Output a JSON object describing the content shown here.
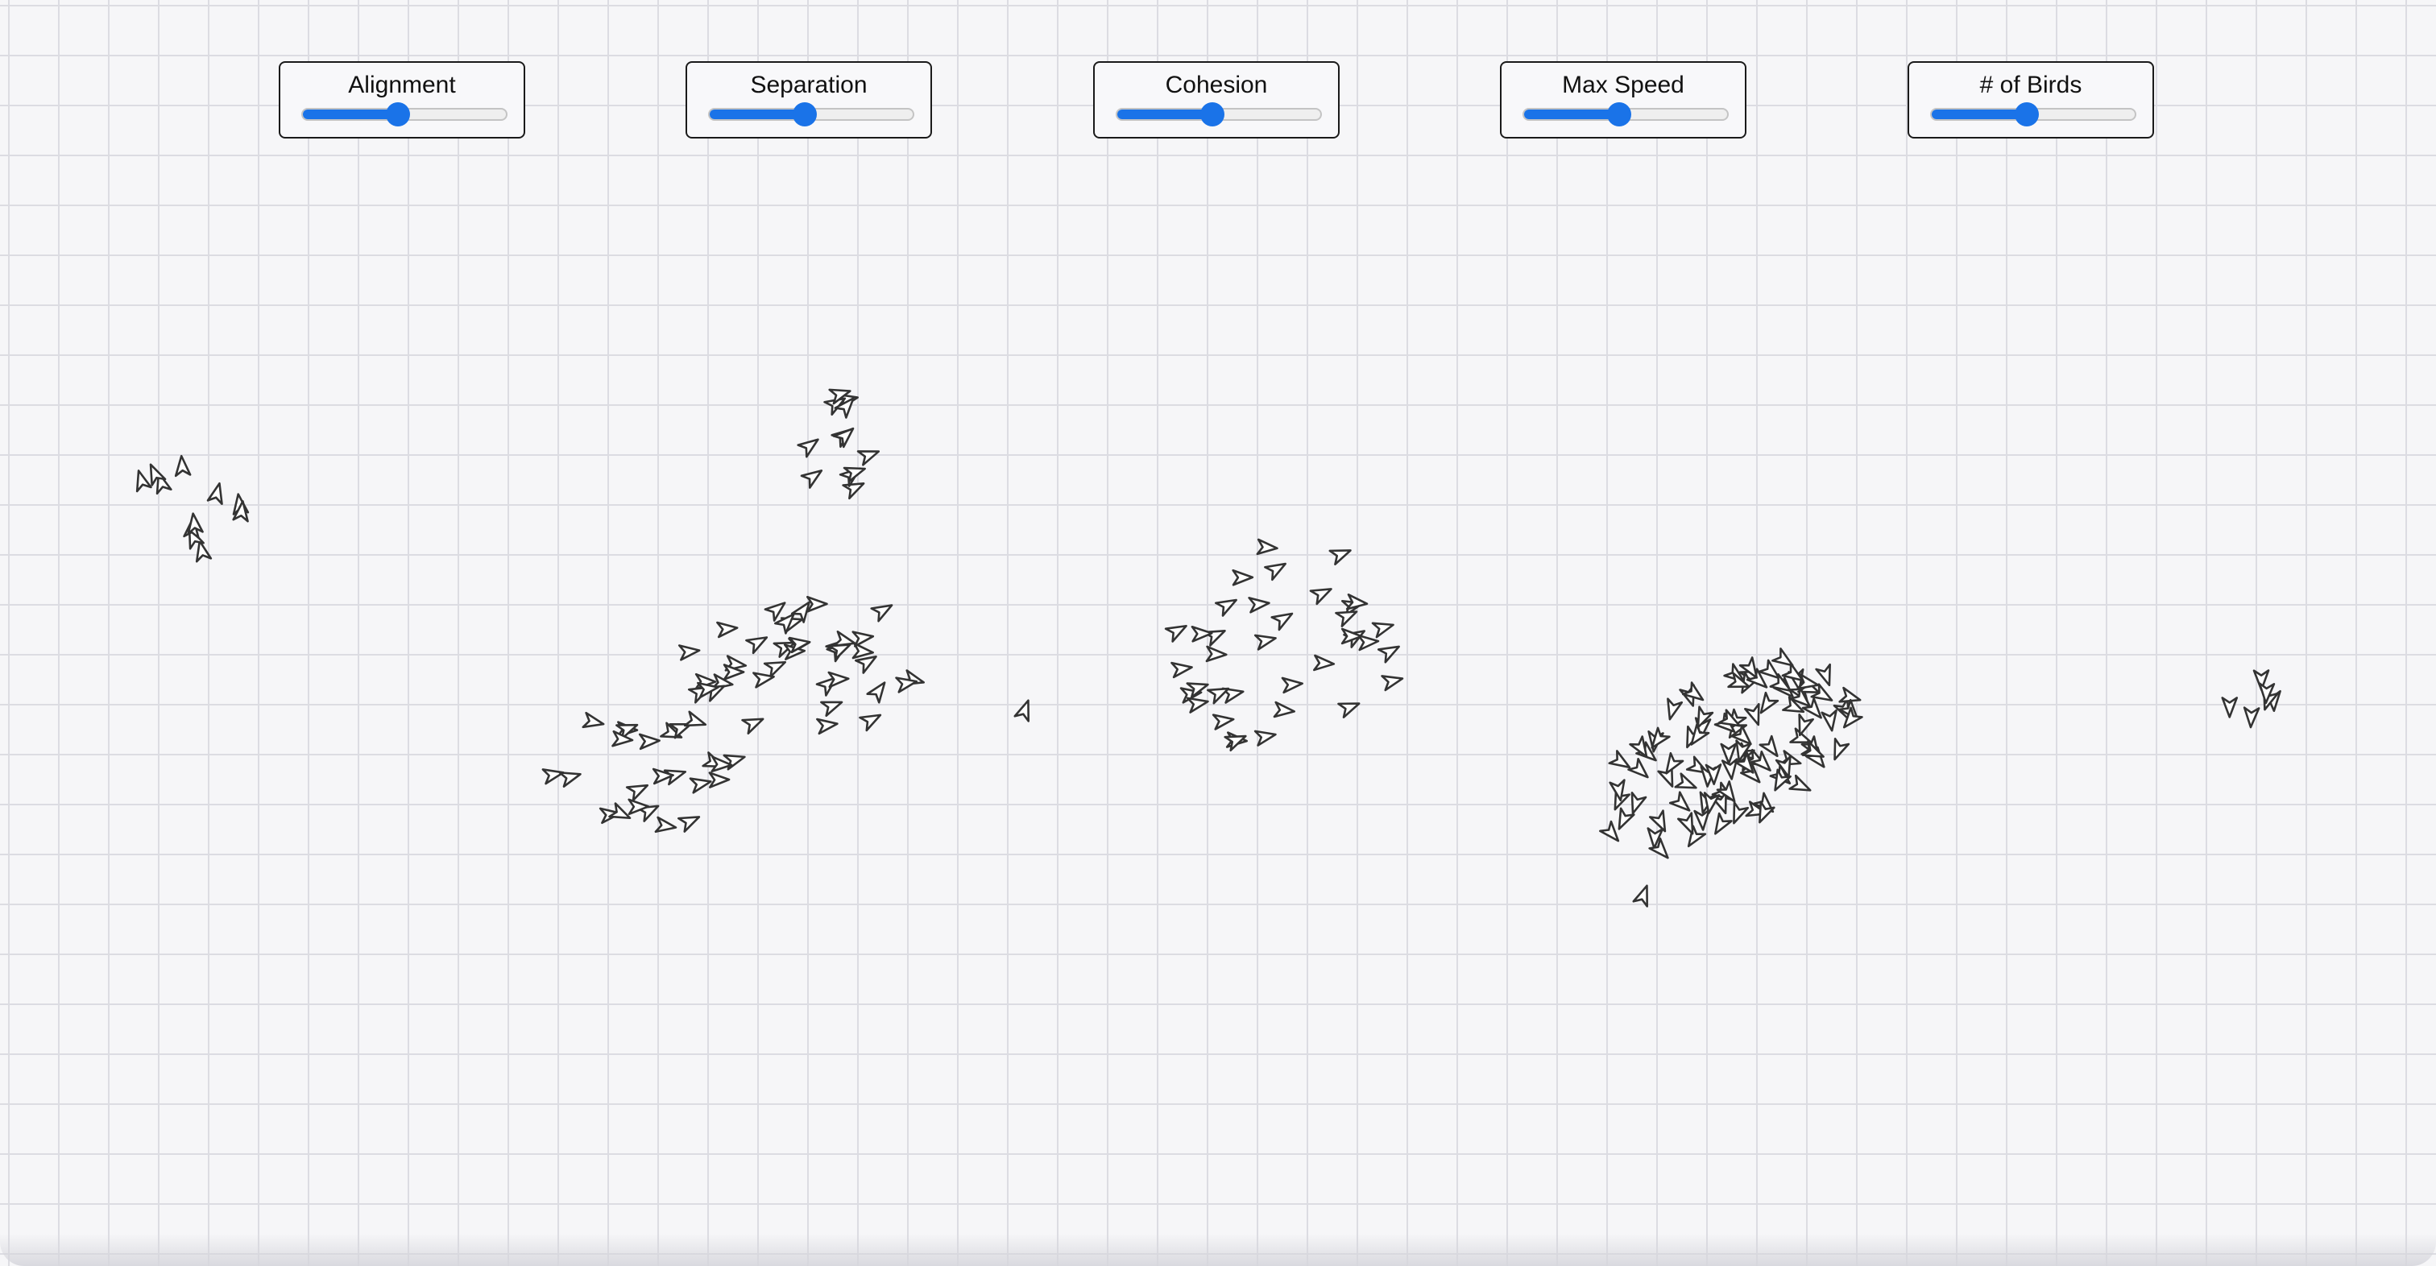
{
  "controls": [
    {
      "label": "Alignment",
      "value": 0.47,
      "accent": "#1a73e8"
    },
    {
      "label": "Separation",
      "value": 0.47,
      "accent": "#1a73e8"
    },
    {
      "label": "Cohesion",
      "value": 0.47,
      "accent": "#1a73e8"
    },
    {
      "label": "Max Speed",
      "value": 0.47,
      "accent": "#1a73e8"
    },
    {
      "label": "# of Birds",
      "value": 0.47,
      "accent": "#1a73e8"
    }
  ],
  "simulation": {
    "background_color": "#f6f6f8",
    "grid_color": "#dcdce2",
    "bird_fill": "#ffffff",
    "bird_stroke": "#333333",
    "bird_icon": "arrowhead-bird-icon"
  }
}
